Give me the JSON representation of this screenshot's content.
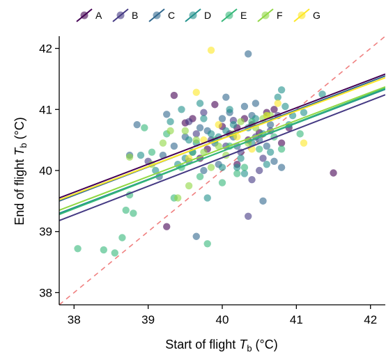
{
  "chart_data": {
    "type": "scatter",
    "xlabel_main": "Start of flight ",
    "xlabel_var": "T",
    "xlabel_sub": "b",
    "xlabel_unit": " (°C)",
    "ylabel_main": "End of flight ",
    "ylabel_var": "T",
    "ylabel_sub": "b",
    "ylabel_unit": " (°C)",
    "xlim": [
      37.8,
      42.2
    ],
    "ylim": [
      37.8,
      42.2
    ],
    "xticks": [
      38,
      39,
      40,
      41,
      42
    ],
    "yticks": [
      38,
      39,
      40,
      41,
      42
    ],
    "grid": false,
    "legend_position": "top",
    "identity_line": {
      "style": "dashed",
      "color": "#f08080"
    },
    "series": [
      {
        "name": "A",
        "color": "#440154",
        "fit": {
          "x": [
            37.8,
            42.2
          ],
          "y": [
            39.55,
            41.58
          ]
        },
        "points": [
          [
            39.35,
            41.23
          ],
          [
            39.6,
            40.85
          ],
          [
            39.7,
            40.2
          ],
          [
            39.8,
            40.35
          ],
          [
            39.9,
            41.08
          ],
          [
            40.0,
            40.72
          ],
          [
            40.1,
            40.6
          ],
          [
            40.2,
            40.7
          ],
          [
            40.3,
            40.85
          ],
          [
            40.4,
            40.75
          ],
          [
            40.5,
            40.62
          ],
          [
            40.6,
            40.95
          ],
          [
            40.7,
            41.0
          ],
          [
            40.2,
            40.1
          ],
          [
            40.8,
            40.45
          ],
          [
            41.5,
            39.96
          ],
          [
            39.5,
            40.78
          ],
          [
            40.35,
            40.5
          ],
          [
            39.25,
            39.08
          ],
          [
            40.9,
            40.7
          ]
        ]
      },
      {
        "name": "B",
        "color": "#443983",
        "fit": {
          "x": [
            37.8,
            42.2
          ],
          "y": [
            39.18,
            41.24
          ]
        },
        "points": [
          [
            39.0,
            40.15
          ],
          [
            39.55,
            40.8
          ],
          [
            39.75,
            40.95
          ],
          [
            40.05,
            40.4
          ],
          [
            40.25,
            40.3
          ],
          [
            40.35,
            39.25
          ],
          [
            40.45,
            40.55
          ],
          [
            40.55,
            40.2
          ],
          [
            40.65,
            40.65
          ],
          [
            40.15,
            40.82
          ],
          [
            39.85,
            40.5
          ],
          [
            40.75,
            40.9
          ],
          [
            40.4,
            39.85
          ],
          [
            39.65,
            40.6
          ],
          [
            40.5,
            40.0
          ]
        ]
      },
      {
        "name": "C",
        "color": "#31688e",
        "fit": {
          "x": [
            37.8,
            42.2
          ],
          "y": [
            39.5,
            41.55
          ]
        },
        "points": [
          [
            38.75,
            40.25
          ],
          [
            38.85,
            40.75
          ],
          [
            39.2,
            40.25
          ],
          [
            39.35,
            40.4
          ],
          [
            39.5,
            40.55
          ],
          [
            39.6,
            40.3
          ],
          [
            39.7,
            40.7
          ],
          [
            39.8,
            40.65
          ],
          [
            39.9,
            40.45
          ],
          [
            40.0,
            40.85
          ],
          [
            40.1,
            40.95
          ],
          [
            40.2,
            40.4
          ],
          [
            40.3,
            41.05
          ],
          [
            40.4,
            40.9
          ],
          [
            40.5,
            40.5
          ],
          [
            40.6,
            40.4
          ],
          [
            40.7,
            40.15
          ],
          [
            40.8,
            40.05
          ],
          [
            39.25,
            40.92
          ],
          [
            40.45,
            41.1
          ],
          [
            39.65,
            38.92
          ],
          [
            39.95,
            40.1
          ],
          [
            40.35,
            41.91
          ],
          [
            40.55,
            39.5
          ],
          [
            39.15,
            39.9
          ],
          [
            39.75,
            40.0
          ],
          [
            40.15,
            40.55
          ],
          [
            40.05,
            41.2
          ],
          [
            40.65,
            40.75
          ],
          [
            39.55,
            40.15
          ]
        ]
      },
      {
        "name": "D",
        "color": "#21918c",
        "fit": {
          "x": [
            37.8,
            42.2
          ],
          "y": [
            39.3,
            41.33
          ]
        },
        "points": [
          [
            38.9,
            40.25
          ],
          [
            39.1,
            40.0
          ],
          [
            39.3,
            40.8
          ],
          [
            39.4,
            40.1
          ],
          [
            39.55,
            40.5
          ],
          [
            39.65,
            40.45
          ],
          [
            39.75,
            40.85
          ],
          [
            39.85,
            40.6
          ],
          [
            39.95,
            40.55
          ],
          [
            40.05,
            40.65
          ],
          [
            40.15,
            40.75
          ],
          [
            40.25,
            40.2
          ],
          [
            40.35,
            40.7
          ],
          [
            40.45,
            40.85
          ],
          [
            40.55,
            40.6
          ],
          [
            40.65,
            40.3
          ],
          [
            40.75,
            41.2
          ],
          [
            40.85,
            41.05
          ],
          [
            40.95,
            40.9
          ],
          [
            41.1,
            40.95
          ],
          [
            41.35,
            41.25
          ],
          [
            40.8,
            41.32
          ],
          [
            39.7,
            41.1
          ],
          [
            40.0,
            40.05
          ],
          [
            40.2,
            40.05
          ],
          [
            39.5,
            40.2
          ],
          [
            40.4,
            40.45
          ],
          [
            40.6,
            40.1
          ],
          [
            40.1,
            41.0
          ],
          [
            39.8,
            39.55
          ],
          [
            40.3,
            39.95
          ],
          [
            40.9,
            40.75
          ],
          [
            39.45,
            41.0
          ]
        ]
      },
      {
        "name": "E",
        "color": "#35b779",
        "fit": {
          "x": [
            37.8,
            42.2
          ],
          "y": [
            39.28,
            41.35
          ]
        },
        "points": [
          [
            38.05,
            38.72
          ],
          [
            38.4,
            38.7
          ],
          [
            38.55,
            38.65
          ],
          [
            38.65,
            38.9
          ],
          [
            38.75,
            39.6
          ],
          [
            38.8,
            39.3
          ],
          [
            38.95,
            40.7
          ],
          [
            39.05,
            40.3
          ],
          [
            39.25,
            40.6
          ],
          [
            39.45,
            40.05
          ],
          [
            39.6,
            40.3
          ],
          [
            39.8,
            38.8
          ],
          [
            39.9,
            40.5
          ],
          [
            40.1,
            40.4
          ],
          [
            40.3,
            40.05
          ],
          [
            40.5,
            40.35
          ],
          [
            40.7,
            40.55
          ],
          [
            41.05,
            40.6
          ],
          [
            39.35,
            39.55
          ],
          [
            39.7,
            39.9
          ],
          [
            40.0,
            39.8
          ],
          [
            40.2,
            39.95
          ],
          [
            40.4,
            40.8
          ],
          [
            40.6,
            40.9
          ],
          [
            40.8,
            40.35
          ],
          [
            38.7,
            39.35
          ]
        ]
      },
      {
        "name": "F",
        "color": "#90d743",
        "fit": {
          "x": [
            37.8,
            42.2
          ],
          "y": [
            39.35,
            41.37
          ]
        },
        "points": [
          [
            38.75,
            40.22
          ],
          [
            39.05,
            40.1
          ],
          [
            39.2,
            40.45
          ],
          [
            39.4,
            39.55
          ],
          [
            39.5,
            40.65
          ],
          [
            39.65,
            40.5
          ],
          [
            39.75,
            40.3
          ],
          [
            39.95,
            40.4
          ],
          [
            40.15,
            40.6
          ],
          [
            40.35,
            40.45
          ],
          [
            40.55,
            40.85
          ],
          [
            40.65,
            40.9
          ],
          [
            39.3,
            40.65
          ],
          [
            39.85,
            40.05
          ],
          [
            40.45,
            40.7
          ],
          [
            39.55,
            39.75
          ],
          [
            40.25,
            40.8
          ],
          [
            40.05,
            40.25
          ]
        ]
      },
      {
        "name": "G",
        "color": "#fde725",
        "fit": {
          "x": [
            37.8,
            42.2
          ],
          "y": [
            39.52,
            41.52
          ]
        },
        "points": [
          [
            39.85,
            41.97
          ],
          [
            39.65,
            41.28
          ],
          [
            40.75,
            41.1
          ],
          [
            41.1,
            40.45
          ],
          [
            39.55,
            40.2
          ],
          [
            40.4,
            40.35
          ],
          [
            39.95,
            40.75
          ],
          [
            40.6,
            40.9
          ],
          [
            40.2,
            40.55
          ],
          [
            39.75,
            40.5
          ]
        ]
      }
    ]
  }
}
